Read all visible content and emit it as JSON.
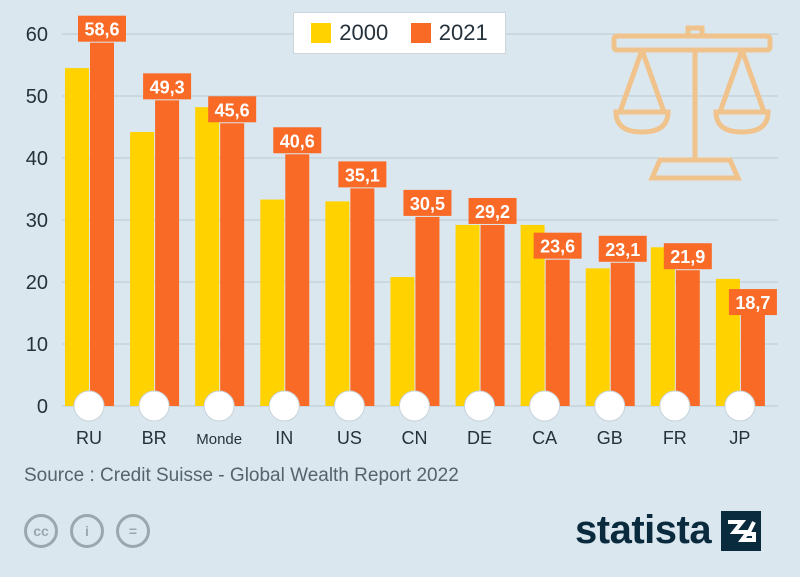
{
  "chart_data": {
    "type": "bar",
    "categories": [
      "RU",
      "BR",
      "Monde",
      "IN",
      "US",
      "CN",
      "DE",
      "CA",
      "GB",
      "FR",
      "JP"
    ],
    "series": [
      {
        "name": "2000",
        "values": [
          54.5,
          44.2,
          48.2,
          33.3,
          33.0,
          20.8,
          29.2,
          29.2,
          22.2,
          25.6,
          20.5
        ]
      },
      {
        "name": "2021",
        "values": [
          58.6,
          49.3,
          45.6,
          40.6,
          35.1,
          30.5,
          29.2,
          23.6,
          23.1,
          21.9,
          18.7
        ]
      }
    ],
    "data_labels": [
      "58,6",
      "49,3",
      "45,6",
      "40,6",
      "35,1",
      "30,5",
      "29,2",
      "23,6",
      "23,1",
      "21,9",
      "18,7"
    ],
    "y_ticks": [
      "0",
      "10",
      "20",
      "30",
      "40",
      "50",
      "60"
    ],
    "ylim": [
      0,
      60
    ],
    "grid": true,
    "legend_position": "top-center"
  },
  "legend": {
    "item1": "2000",
    "item2": "2021"
  },
  "colors": {
    "c2000": "#ffd200",
    "c2021": "#f96a27",
    "label_bg": "#f96a27",
    "grid": "#b9c9d2",
    "scale": "#f0c38d"
  },
  "icons": {
    "scale": "balance-scale-icon",
    "flags": "country-flag-icons",
    "license": [
      "cc-icon",
      "by-icon",
      "nd-icon"
    ]
  },
  "source": "Source : Credit Suisse - Global Wealth Report 2022",
  "license_icons": {
    "cc": "cc",
    "by": "i",
    "nd": "="
  },
  "logo": "statista"
}
